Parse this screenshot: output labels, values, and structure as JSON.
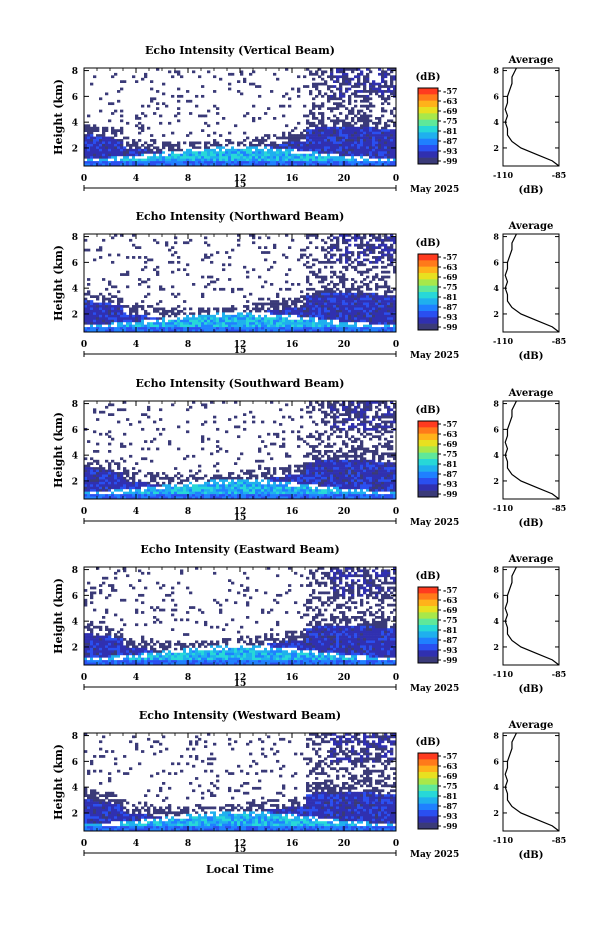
{
  "chart_data": [
    {
      "type": "heatmap",
      "title": "Echo Intensity (Vertical Beam)",
      "ylabel": "Height (km)",
      "xticks": [
        "0",
        "4",
        "8",
        "12",
        "16",
        "20",
        "0"
      ],
      "yticks": [
        "2",
        "4",
        "6",
        "8"
      ],
      "date_mark": "15",
      "date_label": "May 2025",
      "xlim": [
        0,
        24
      ],
      "ylim": [
        0.6,
        8.2
      ],
      "profile": {
        "title": "Average",
        "xlabel": "(dB)",
        "xticks": [
          "-110",
          "-85"
        ],
        "yticks": [
          "2",
          "4",
          "6",
          "8"
        ],
        "xlim": [
          -110,
          -85
        ],
        "ylim": [
          0.6,
          8.2
        ]
      }
    },
    {
      "type": "heatmap",
      "title": "Echo Intensity (Northward Beam)",
      "ylabel": "Height (km)",
      "xticks": [
        "0",
        "4",
        "8",
        "12",
        "16",
        "20",
        "0"
      ],
      "yticks": [
        "2",
        "4",
        "6",
        "8"
      ],
      "date_mark": "15",
      "date_label": "May 2025",
      "xlim": [
        0,
        24
      ],
      "ylim": [
        0.6,
        8.2
      ],
      "profile": {
        "title": "Average",
        "xlabel": "(dB)",
        "xticks": [
          "-110",
          "-85"
        ],
        "yticks": [
          "2",
          "4",
          "6",
          "8"
        ],
        "xlim": [
          -110,
          -85
        ],
        "ylim": [
          0.6,
          8.2
        ]
      }
    },
    {
      "type": "heatmap",
      "title": "Echo Intensity (Southward Beam)",
      "ylabel": "Height (km)",
      "xticks": [
        "0",
        "4",
        "8",
        "12",
        "16",
        "20",
        "0"
      ],
      "yticks": [
        "2",
        "4",
        "6",
        "8"
      ],
      "date_mark": "15",
      "date_label": "May 2025",
      "xlim": [
        0,
        24
      ],
      "ylim": [
        0.6,
        8.2
      ],
      "profile": {
        "title": "Average",
        "xlabel": "(dB)",
        "xticks": [
          "-110",
          "-85"
        ],
        "yticks": [
          "2",
          "4",
          "6",
          "8"
        ],
        "xlim": [
          -110,
          -85
        ],
        "ylim": [
          0.6,
          8.2
        ]
      }
    },
    {
      "type": "heatmap",
      "title": "Echo Intensity (Eastward Beam)",
      "ylabel": "Height (km)",
      "xticks": [
        "0",
        "4",
        "8",
        "12",
        "16",
        "20",
        "0"
      ],
      "yticks": [
        "2",
        "4",
        "6",
        "8"
      ],
      "date_mark": "15",
      "date_label": "May 2025",
      "xlim": [
        0,
        24
      ],
      "ylim": [
        0.6,
        8.2
      ],
      "profile": {
        "title": "Average",
        "xlabel": "(dB)",
        "xticks": [
          "-110",
          "-85"
        ],
        "yticks": [
          "2",
          "4",
          "6",
          "8"
        ],
        "xlim": [
          -110,
          -85
        ],
        "ylim": [
          0.6,
          8.2
        ]
      }
    },
    {
      "type": "heatmap",
      "title": "Echo Intensity (Westward Beam)",
      "ylabel": "Height (km)",
      "xticks": [
        "0",
        "4",
        "8",
        "12",
        "16",
        "20",
        "0"
      ],
      "yticks": [
        "2",
        "4",
        "6",
        "8"
      ],
      "date_mark": "15",
      "date_label": "May 2025",
      "xlim": [
        0,
        24
      ],
      "ylim": [
        0.6,
        8.2
      ],
      "xlabel": "Local Time",
      "profile": {
        "title": "Average",
        "xlabel": "(dB)",
        "xticks": [
          "-110",
          "-85"
        ],
        "yticks": [
          "2",
          "4",
          "6",
          "8"
        ],
        "xlim": [
          -110,
          -85
        ],
        "ylim": [
          0.6,
          8.2
        ]
      }
    }
  ],
  "colorbar": {
    "unit": "(dB)",
    "labels": [
      "-57",
      "-63",
      "-69",
      "-75",
      "-81",
      "-87",
      "-93",
      "-99"
    ],
    "colors": [
      "#ff3b1f",
      "#ff7a1a",
      "#ffb21a",
      "#e8e020",
      "#a8e84a",
      "#5fe89a",
      "#27d8d8",
      "#1fb0ee",
      "#1f80ff",
      "#2a4ff0",
      "#3030b0",
      "#3a3a78"
    ]
  },
  "average_profile": {
    "height_km": [
      0.6,
      1.0,
      1.5,
      2.0,
      2.5,
      3.0,
      3.5,
      4.0,
      4.5,
      5.0,
      5.5,
      6.0,
      6.5,
      7.0,
      7.5,
      8.2
    ],
    "db": [
      -85,
      -88,
      -95,
      -102,
      -106,
      -108,
      -108,
      -109,
      -108,
      -109,
      -108,
      -108,
      -107,
      -106,
      -106,
      -104
    ]
  }
}
